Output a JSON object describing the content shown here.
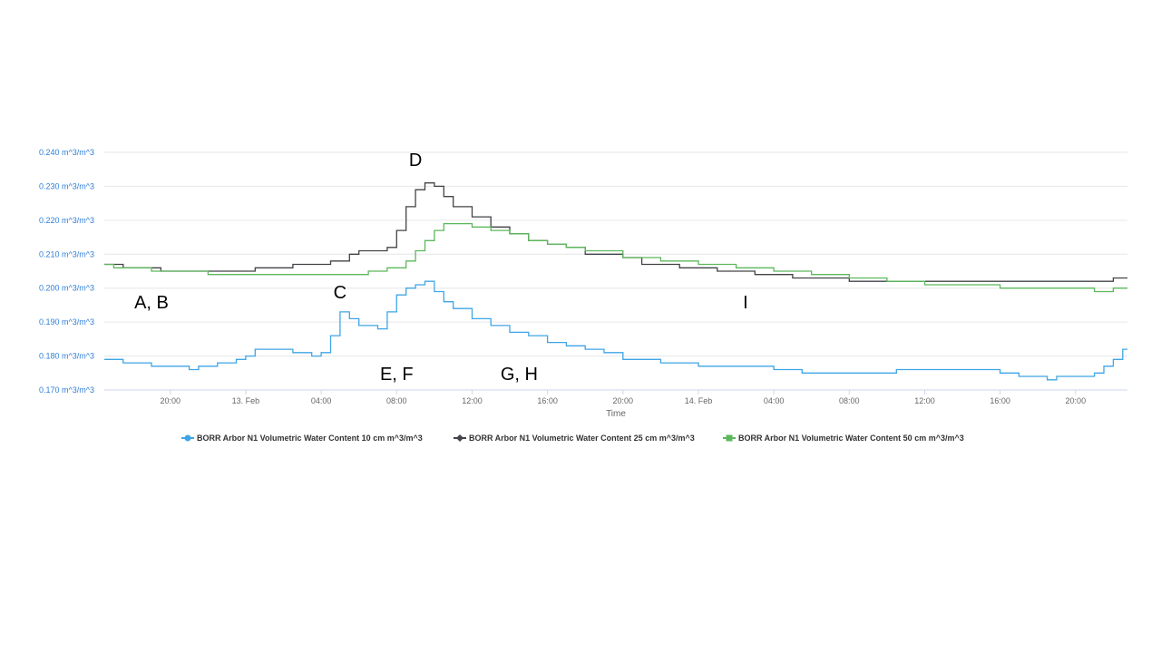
{
  "chart_data": {
    "type": "line",
    "xlabel": "Time",
    "ylabel": "",
    "ylim": [
      0.17,
      0.24
    ],
    "grid": true,
    "legend_placement": "bottom",
    "x_ticks": [
      "20:00",
      "13. Feb",
      "04:00",
      "08:00",
      "12:00",
      "16:00",
      "20:00",
      "14. Feb",
      "04:00",
      "08:00",
      "12:00",
      "16:00",
      "20:00"
    ],
    "y_ticks": [
      {
        "value": 0.17,
        "label": "0.170 m^3/m^3"
      },
      {
        "value": 0.18,
        "label": "0.180 m^3/m^3"
      },
      {
        "value": 0.19,
        "label": "0.190 m^3/m^3"
      },
      {
        "value": 0.2,
        "label": "0.200 m^3/m^3"
      },
      {
        "value": 0.21,
        "label": "0.210 m^3/m^3"
      },
      {
        "value": 0.22,
        "label": "0.220 m^3/m^3"
      },
      {
        "value": 0.23,
        "label": "0.230 m^3/m^3"
      },
      {
        "value": 0.24,
        "label": "0.240 m^3/m^3"
      }
    ],
    "annotations": [
      {
        "label": "A, B",
        "x": "2024-02-12 19:00",
        "y": 0.194
      },
      {
        "label": "C",
        "x": "2024-02-13 05:00",
        "y": 0.197
      },
      {
        "label": "D",
        "x": "2024-02-13 09:00",
        "y": 0.236
      },
      {
        "label": "E, F",
        "x": "2024-02-13 08:00",
        "y": 0.173
      },
      {
        "label": "G, H",
        "x": "2024-02-13 14:30",
        "y": 0.173
      },
      {
        "label": "I",
        "x": "2024-02-14 02:30",
        "y": 0.194
      }
    ],
    "series": [
      {
        "name": "BORR Arbor N1 Volumetric Water Content 10 cm m^3/m^3",
        "color": "#3fa5e6",
        "marker": "circle",
        "points": [
          [
            "2024-02-12 16:30",
            0.179
          ],
          [
            "2024-02-12 17:30",
            0.178
          ],
          [
            "2024-02-12 19:00",
            0.177
          ],
          [
            "2024-02-12 21:00",
            0.176
          ],
          [
            "2024-02-12 21:30",
            0.177
          ],
          [
            "2024-02-12 22:30",
            0.178
          ],
          [
            "2024-02-12 23:30",
            0.179
          ],
          [
            "2024-02-13 00:00",
            0.18
          ],
          [
            "2024-02-13 00:30",
            0.182
          ],
          [
            "2024-02-13 01:30",
            0.182
          ],
          [
            "2024-02-13 02:30",
            0.181
          ],
          [
            "2024-02-13 03:30",
            0.18
          ],
          [
            "2024-02-13 04:00",
            0.181
          ],
          [
            "2024-02-13 04:30",
            0.186
          ],
          [
            "2024-02-13 05:00",
            0.193
          ],
          [
            "2024-02-13 05:30",
            0.191
          ],
          [
            "2024-02-13 06:00",
            0.189
          ],
          [
            "2024-02-13 07:00",
            0.188
          ],
          [
            "2024-02-13 07:30",
            0.193
          ],
          [
            "2024-02-13 08:00",
            0.198
          ],
          [
            "2024-02-13 08:30",
            0.2
          ],
          [
            "2024-02-13 09:00",
            0.201
          ],
          [
            "2024-02-13 09:30",
            0.202
          ],
          [
            "2024-02-13 10:00",
            0.199
          ],
          [
            "2024-02-13 10:30",
            0.196
          ],
          [
            "2024-02-13 11:00",
            0.194
          ],
          [
            "2024-02-13 12:00",
            0.191
          ],
          [
            "2024-02-13 13:00",
            0.189
          ],
          [
            "2024-02-13 14:00",
            0.187
          ],
          [
            "2024-02-13 15:00",
            0.186
          ],
          [
            "2024-02-13 16:00",
            0.184
          ],
          [
            "2024-02-13 17:00",
            0.183
          ],
          [
            "2024-02-13 18:00",
            0.182
          ],
          [
            "2024-02-13 19:00",
            0.181
          ],
          [
            "2024-02-13 20:00",
            0.179
          ],
          [
            "2024-02-13 22:00",
            0.178
          ],
          [
            "2024-02-14 00:00",
            0.177
          ],
          [
            "2024-02-14 02:00",
            0.177
          ],
          [
            "2024-02-14 04:00",
            0.176
          ],
          [
            "2024-02-14 05:30",
            0.175
          ],
          [
            "2024-02-14 08:00",
            0.175
          ],
          [
            "2024-02-14 10:00",
            0.175
          ],
          [
            "2024-02-14 10:30",
            0.176
          ],
          [
            "2024-02-14 12:00",
            0.176
          ],
          [
            "2024-02-14 14:00",
            0.176
          ],
          [
            "2024-02-14 16:00",
            0.175
          ],
          [
            "2024-02-14 17:00",
            0.174
          ],
          [
            "2024-02-14 18:30",
            0.173
          ],
          [
            "2024-02-14 19:00",
            0.174
          ],
          [
            "2024-02-14 20:00",
            0.174
          ],
          [
            "2024-02-14 21:00",
            0.175
          ],
          [
            "2024-02-14 21:30",
            0.177
          ],
          [
            "2024-02-14 22:00",
            0.179
          ],
          [
            "2024-02-14 22:30",
            0.182
          ]
        ]
      },
      {
        "name": "BORR Arbor N1 Volumetric Water Content 25 cm m^3/m^3",
        "color": "#434348",
        "marker": "diamond",
        "points": [
          [
            "2024-02-12 16:30",
            0.207
          ],
          [
            "2024-02-12 17:30",
            0.206
          ],
          [
            "2024-02-12 19:30",
            0.205
          ],
          [
            "2024-02-12 22:00",
            0.205
          ],
          [
            "2024-02-13 00:30",
            0.206
          ],
          [
            "2024-02-13 02:00",
            0.206
          ],
          [
            "2024-02-13 02:30",
            0.207
          ],
          [
            "2024-02-13 04:00",
            0.207
          ],
          [
            "2024-02-13 04:30",
            0.208
          ],
          [
            "2024-02-13 05:30",
            0.21
          ],
          [
            "2024-02-13 06:00",
            0.211
          ],
          [
            "2024-02-13 07:30",
            0.212
          ],
          [
            "2024-02-13 08:00",
            0.217
          ],
          [
            "2024-02-13 08:30",
            0.224
          ],
          [
            "2024-02-13 09:00",
            0.229
          ],
          [
            "2024-02-13 09:30",
            0.231
          ],
          [
            "2024-02-13 10:00",
            0.23
          ],
          [
            "2024-02-13 10:30",
            0.227
          ],
          [
            "2024-02-13 11:00",
            0.224
          ],
          [
            "2024-02-13 12:00",
            0.221
          ],
          [
            "2024-02-13 13:00",
            0.218
          ],
          [
            "2024-02-13 14:00",
            0.216
          ],
          [
            "2024-02-13 15:00",
            0.214
          ],
          [
            "2024-02-13 16:00",
            0.213
          ],
          [
            "2024-02-13 17:00",
            0.212
          ],
          [
            "2024-02-13 18:00",
            0.21
          ],
          [
            "2024-02-13 20:00",
            0.209
          ],
          [
            "2024-02-13 21:00",
            0.207
          ],
          [
            "2024-02-13 23:00",
            0.206
          ],
          [
            "2024-02-14 01:00",
            0.205
          ],
          [
            "2024-02-14 03:00",
            0.204
          ],
          [
            "2024-02-14 05:00",
            0.203
          ],
          [
            "2024-02-14 08:00",
            0.202
          ],
          [
            "2024-02-14 12:00",
            0.202
          ],
          [
            "2024-02-14 16:00",
            0.202
          ],
          [
            "2024-02-14 20:00",
            0.202
          ],
          [
            "2024-02-14 22:00",
            0.203
          ]
        ]
      },
      {
        "name": "BORR Arbor N1 Volumetric Water Content 50 cm m^3/m^3",
        "color": "#5cb85c",
        "marker": "square",
        "points": [
          [
            "2024-02-12 16:30",
            0.207
          ],
          [
            "2024-02-12 17:00",
            0.206
          ],
          [
            "2024-02-12 19:00",
            0.205
          ],
          [
            "2024-02-12 22:00",
            0.204
          ],
          [
            "2024-02-13 06:00",
            0.204
          ],
          [
            "2024-02-13 06:30",
            0.205
          ],
          [
            "2024-02-13 07:30",
            0.206
          ],
          [
            "2024-02-13 08:30",
            0.208
          ],
          [
            "2024-02-13 09:00",
            0.211
          ],
          [
            "2024-02-13 09:30",
            0.214
          ],
          [
            "2024-02-13 10:00",
            0.217
          ],
          [
            "2024-02-13 10:30",
            0.219
          ],
          [
            "2024-02-13 12:00",
            0.218
          ],
          [
            "2024-02-13 13:00",
            0.217
          ],
          [
            "2024-02-13 14:00",
            0.216
          ],
          [
            "2024-02-13 15:00",
            0.214
          ],
          [
            "2024-02-13 16:00",
            0.213
          ],
          [
            "2024-02-13 17:00",
            0.212
          ],
          [
            "2024-02-13 18:00",
            0.211
          ],
          [
            "2024-02-13 20:00",
            0.209
          ],
          [
            "2024-02-13 22:00",
            0.208
          ],
          [
            "2024-02-14 00:00",
            0.207
          ],
          [
            "2024-02-14 02:00",
            0.206
          ],
          [
            "2024-02-14 04:00",
            0.205
          ],
          [
            "2024-02-14 06:00",
            0.204
          ],
          [
            "2024-02-14 08:00",
            0.203
          ],
          [
            "2024-02-14 10:00",
            0.202
          ],
          [
            "2024-02-14 12:00",
            0.201
          ],
          [
            "2024-02-14 16:00",
            0.2
          ],
          [
            "2024-02-14 21:00",
            0.199
          ],
          [
            "2024-02-14 22:00",
            0.2
          ],
          [
            "2024-02-14 22:30",
            0.2
          ]
        ]
      }
    ]
  }
}
